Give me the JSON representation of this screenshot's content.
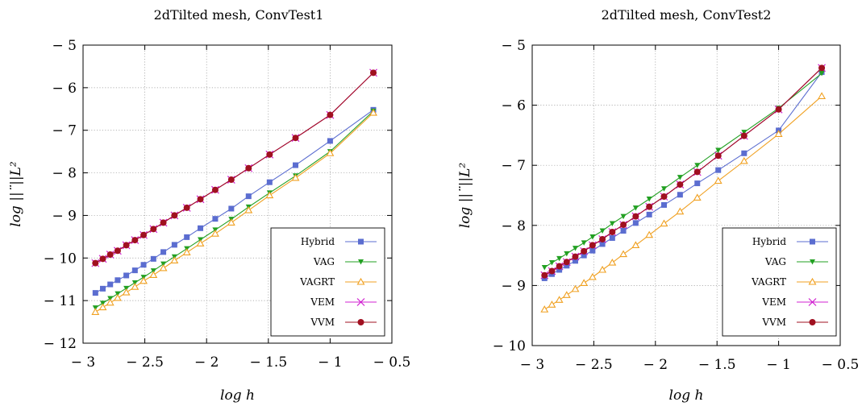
{
  "chart_data": [
    {
      "type": "line",
      "title": "2dTilted mesh, ConvTest1",
      "xlabel": "log h",
      "ylabel": "log ||¨||L²",
      "xlim": [
        -3,
        -0.5
      ],
      "ylim": [
        -12,
        -5
      ],
      "xticks": [
        -3,
        -2.5,
        -2,
        -1.5,
        -1,
        -0.5
      ],
      "xtick_labels": [
        "− 3",
        "− 2.5",
        "− 2",
        "− 1.5",
        "− 1",
        "− 0.5"
      ],
      "yticks": [
        -12,
        -11,
        -10,
        -9,
        -8,
        -7,
        -6,
        -5
      ],
      "ytick_labels": [
        "− 12",
        "− 11",
        "− 10",
        "− 9",
        "− 8",
        "− 7",
        "− 6",
        "− 5"
      ],
      "grid": true,
      "legend_position": "bottom-right",
      "series": [
        {
          "name": "Hybrid",
          "color": "#5b6dd0",
          "marker": "square",
          "x": [
            -2.9,
            -2.84,
            -2.78,
            -2.72,
            -2.65,
            -2.58,
            -2.51,
            -2.43,
            -2.35,
            -2.26,
            -2.16,
            -2.05,
            -1.93,
            -1.8,
            -1.66,
            -1.49,
            -1.28,
            -1.0,
            -0.65
          ],
          "y": [
            -10.82,
            -10.72,
            -10.62,
            -10.52,
            -10.41,
            -10.29,
            -10.16,
            -10.02,
            -9.86,
            -9.69,
            -9.51,
            -9.3,
            -9.08,
            -8.84,
            -8.55,
            -8.22,
            -7.82,
            -7.25,
            -6.52
          ]
        },
        {
          "name": "VAG",
          "color": "#22a022",
          "marker": "triangle-down",
          "x": [
            -2.9,
            -2.84,
            -2.78,
            -2.72,
            -2.65,
            -2.58,
            -2.51,
            -2.43,
            -2.35,
            -2.26,
            -2.16,
            -2.05,
            -1.93,
            -1.8,
            -1.66,
            -1.49,
            -1.28,
            -1.0,
            -0.65
          ],
          "y": [
            -11.17,
            -11.06,
            -10.95,
            -10.84,
            -10.71,
            -10.58,
            -10.45,
            -10.3,
            -10.14,
            -9.97,
            -9.78,
            -9.57,
            -9.34,
            -9.09,
            -8.8,
            -8.47,
            -8.07,
            -7.5,
            -6.55
          ]
        },
        {
          "name": "VAGRT",
          "color": "#f0a020",
          "marker": "triangle-up",
          "x": [
            -2.9,
            -2.84,
            -2.78,
            -2.72,
            -2.65,
            -2.58,
            -2.51,
            -2.43,
            -2.35,
            -2.26,
            -2.16,
            -2.05,
            -1.93,
            -1.8,
            -1.66,
            -1.49,
            -1.28,
            -1.0,
            -0.65
          ],
          "y": [
            -11.27,
            -11.16,
            -11.05,
            -10.94,
            -10.81,
            -10.68,
            -10.54,
            -10.4,
            -10.24,
            -10.06,
            -9.87,
            -9.66,
            -9.43,
            -9.17,
            -8.88,
            -8.53,
            -8.12,
            -7.54,
            -6.59
          ]
        },
        {
          "name": "VEM",
          "color": "#d020d0",
          "marker": "x",
          "x": [
            -2.9,
            -2.84,
            -2.78,
            -2.72,
            -2.65,
            -2.58,
            -2.51,
            -2.43,
            -2.35,
            -2.26,
            -2.16,
            -2.05,
            -1.93,
            -1.8,
            -1.66,
            -1.49,
            -1.28,
            -1.0,
            -0.65
          ],
          "y": [
            -10.12,
            -10.02,
            -9.92,
            -9.83,
            -9.7,
            -9.58,
            -9.46,
            -9.32,
            -9.17,
            -9.0,
            -8.82,
            -8.62,
            -8.4,
            -8.16,
            -7.89,
            -7.57,
            -7.18,
            -6.64,
            -5.65
          ]
        },
        {
          "name": "VVM",
          "color": "#a01020",
          "marker": "circle",
          "x": [
            -2.9,
            -2.84,
            -2.78,
            -2.72,
            -2.65,
            -2.58,
            -2.51,
            -2.43,
            -2.35,
            -2.26,
            -2.16,
            -2.05,
            -1.93,
            -1.8,
            -1.66,
            -1.49,
            -1.28,
            -1.0,
            -0.65
          ],
          "y": [
            -10.12,
            -10.02,
            -9.92,
            -9.83,
            -9.7,
            -9.58,
            -9.46,
            -9.32,
            -9.17,
            -9.0,
            -8.82,
            -8.62,
            -8.4,
            -8.16,
            -7.89,
            -7.57,
            -7.18,
            -6.64,
            -5.65
          ]
        }
      ]
    },
    {
      "type": "line",
      "title": "2dTilted mesh, ConvTest2",
      "xlabel": "log h",
      "ylabel": "log ||¨||L²",
      "xlim": [
        -3,
        -0.5
      ],
      "ylim": [
        -10,
        -5
      ],
      "xticks": [
        -3,
        -2.5,
        -2,
        -1.5,
        -1,
        -0.5
      ],
      "xtick_labels": [
        "− 3",
        "− 2.5",
        "− 2",
        "− 1.5",
        "− 1",
        "− 0.5"
      ],
      "yticks": [
        -10,
        -9,
        -8,
        -7,
        -6,
        -5
      ],
      "ytick_labels": [
        "− 10",
        "− 9",
        "− 8",
        "− 7",
        "− 6",
        "− 5"
      ],
      "grid": true,
      "legend_position": "bottom-right",
      "series": [
        {
          "name": "Hybrid",
          "color": "#5b6dd0",
          "marker": "square",
          "x": [
            -2.9,
            -2.84,
            -2.78,
            -2.72,
            -2.65,
            -2.58,
            -2.51,
            -2.43,
            -2.35,
            -2.26,
            -2.16,
            -2.05,
            -1.93,
            -1.8,
            -1.66,
            -1.49,
            -1.28,
            -1.0,
            -0.65
          ],
          "y": [
            -8.88,
            -8.81,
            -8.74,
            -8.67,
            -8.59,
            -8.5,
            -8.42,
            -8.31,
            -8.21,
            -8.09,
            -7.96,
            -7.82,
            -7.66,
            -7.49,
            -7.3,
            -7.08,
            -6.8,
            -6.42,
            -5.45
          ]
        },
        {
          "name": "VAG",
          "color": "#22a022",
          "marker": "triangle-down",
          "x": [
            -2.9,
            -2.84,
            -2.78,
            -2.72,
            -2.65,
            -2.58,
            -2.51,
            -2.43,
            -2.35,
            -2.26,
            -2.16,
            -2.05,
            -1.93,
            -1.8,
            -1.66,
            -1.49,
            -1.28,
            -1.0,
            -0.65
          ],
          "y": [
            -8.7,
            -8.62,
            -8.55,
            -8.47,
            -8.38,
            -8.29,
            -8.19,
            -8.09,
            -7.97,
            -7.85,
            -7.71,
            -7.56,
            -7.39,
            -7.2,
            -7.0,
            -6.75,
            -6.45,
            -6.05,
            -5.47
          ]
        },
        {
          "name": "VAGRT",
          "color": "#f0a020",
          "marker": "triangle-up",
          "x": [
            -2.9,
            -2.84,
            -2.78,
            -2.72,
            -2.65,
            -2.58,
            -2.51,
            -2.43,
            -2.35,
            -2.26,
            -2.16,
            -2.05,
            -1.93,
            -1.8,
            -1.66,
            -1.49,
            -1.28,
            -1.0,
            -0.65
          ],
          "y": [
            -9.4,
            -9.32,
            -9.24,
            -9.16,
            -9.06,
            -8.96,
            -8.86,
            -8.74,
            -8.62,
            -8.48,
            -8.33,
            -8.16,
            -7.97,
            -7.77,
            -7.54,
            -7.26,
            -6.93,
            -6.48,
            -5.85
          ]
        },
        {
          "name": "VEM",
          "color": "#d020d0",
          "marker": "x",
          "x": [
            -2.9,
            -2.84,
            -2.78,
            -2.72,
            -2.65,
            -2.58,
            -2.51,
            -2.43,
            -2.35,
            -2.26,
            -2.16,
            -2.05,
            -1.93,
            -1.8,
            -1.66,
            -1.49,
            -1.28,
            -1.0,
            -0.65
          ],
          "y": [
            -8.83,
            -8.76,
            -8.68,
            -8.61,
            -8.52,
            -8.43,
            -8.33,
            -8.23,
            -8.11,
            -7.99,
            -7.85,
            -7.69,
            -7.52,
            -7.32,
            -7.11,
            -6.84,
            -6.51,
            -6.07,
            -5.38
          ]
        },
        {
          "name": "VVM",
          "color": "#a01020",
          "marker": "circle",
          "x": [
            -2.9,
            -2.84,
            -2.78,
            -2.72,
            -2.65,
            -2.58,
            -2.51,
            -2.43,
            -2.35,
            -2.26,
            -2.16,
            -2.05,
            -1.93,
            -1.8,
            -1.66,
            -1.49,
            -1.28,
            -1.0,
            -0.65
          ],
          "y": [
            -8.83,
            -8.76,
            -8.68,
            -8.61,
            -8.52,
            -8.43,
            -8.33,
            -8.23,
            -8.11,
            -7.99,
            -7.85,
            -7.69,
            -7.52,
            -7.32,
            -7.11,
            -6.84,
            -6.51,
            -6.07,
            -5.38
          ]
        }
      ]
    }
  ]
}
